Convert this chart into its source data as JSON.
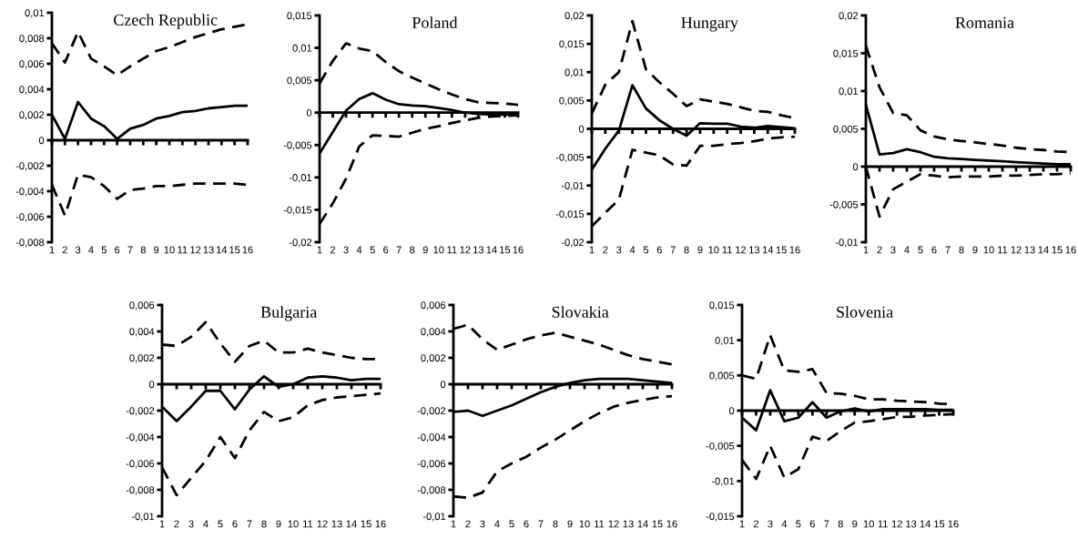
{
  "chart_data": [
    {
      "type": "line",
      "title": "Czech Republic",
      "categories": [
        "1",
        "2",
        "3",
        "4",
        "5",
        "6",
        "7",
        "8",
        "9",
        "10",
        "11",
        "12",
        "13",
        "14",
        "15",
        "16"
      ],
      "series": [
        {
          "color": "#000000",
          "line_style": "dashed",
          "values": [
            0.0076,
            0.0061,
            0.0085,
            0.0064,
            0.0058,
            0.0051,
            0.0058,
            0.0064,
            0.007,
            0.0073,
            0.0077,
            0.0081,
            0.0084,
            0.0087,
            0.0089,
            0.0091
          ]
        },
        {
          "color": "#000000",
          "line_style": "solid",
          "values": [
            0.002,
            0.0001,
            0.003,
            0.0017,
            0.0011,
            0.0001,
            0.0009,
            0.0012,
            0.0017,
            0.0019,
            0.0022,
            0.0023,
            0.0025,
            0.0026,
            0.0027,
            0.0027
          ]
        },
        {
          "color": "#000000",
          "line_style": "dashed",
          "values": [
            -0.0035,
            -0.0059,
            -0.0027,
            -0.0029,
            -0.0036,
            -0.0046,
            -0.0039,
            -0.0038,
            -0.0036,
            -0.0036,
            -0.0035,
            -0.0034,
            -0.0034,
            -0.0034,
            -0.0034,
            -0.0035
          ]
        }
      ],
      "ylim": [
        -0.008,
        0.01
      ],
      "yticks": [
        {
          "value": -0.008,
          "label": "-0,008"
        },
        {
          "value": -0.006,
          "label": "-0,006"
        },
        {
          "value": -0.004,
          "label": "-0,004"
        },
        {
          "value": -0.002,
          "label": "-0,002"
        },
        {
          "value": 0,
          "label": "0"
        },
        {
          "value": 0.002,
          "label": "0,002"
        },
        {
          "value": 0.004,
          "label": "0,004"
        },
        {
          "value": 0.006,
          "label": "0,006"
        },
        {
          "value": 0.008,
          "label": "0,008"
        },
        {
          "value": 0.01,
          "label": "0,01"
        }
      ]
    },
    {
      "type": "line",
      "title": "Poland",
      "categories": [
        "1",
        "2",
        "3",
        "4",
        "5",
        "6",
        "7",
        "8",
        "9",
        "10",
        "11",
        "12",
        "13",
        "14",
        "15",
        "16"
      ],
      "series": [
        {
          "color": "#000000",
          "line_style": "dashed",
          "values": [
            0.0045,
            0.008,
            0.0107,
            0.0099,
            0.0095,
            0.0078,
            0.0064,
            0.0054,
            0.0045,
            0.0036,
            0.0028,
            0.0021,
            0.0016,
            0.0015,
            0.0014,
            0.0012
          ]
        },
        {
          "color": "#000000",
          "line_style": "solid",
          "values": [
            -0.0063,
            -0.003,
            0.0003,
            0.0021,
            0.003,
            0.002,
            0.0013,
            0.0011,
            0.001,
            0.0007,
            0.0004,
            0.0,
            -0.0002,
            -0.0003,
            -0.0003,
            -0.0003
          ]
        },
        {
          "color": "#000000",
          "line_style": "dashed",
          "values": [
            -0.0172,
            -0.014,
            -0.0102,
            -0.0052,
            -0.0035,
            -0.0036,
            -0.0037,
            -0.0031,
            -0.0025,
            -0.0021,
            -0.0016,
            -0.0012,
            -0.0008,
            -0.0006,
            -0.0005,
            -0.0004
          ]
        }
      ],
      "ylim": [
        -0.02,
        0.015
      ],
      "yticks": [
        {
          "value": -0.02,
          "label": "-0,02"
        },
        {
          "value": -0.015,
          "label": "-0,015"
        },
        {
          "value": -0.01,
          "label": "-0,01"
        },
        {
          "value": -0.005,
          "label": "-0,005"
        },
        {
          "value": 0,
          "label": "0"
        },
        {
          "value": 0.005,
          "label": "0,005"
        },
        {
          "value": 0.01,
          "label": "0,01"
        },
        {
          "value": 0.015,
          "label": "0,015"
        }
      ]
    },
    {
      "type": "line",
      "title": "Hungary",
      "categories": [
        "1",
        "2",
        "3",
        "4",
        "5",
        "6",
        "7",
        "8",
        "9",
        "10",
        "11",
        "12",
        "13",
        "14",
        "15",
        "16"
      ],
      "series": [
        {
          "color": "#000000",
          "line_style": "dashed",
          "values": [
            0.0027,
            0.0078,
            0.01,
            0.019,
            0.0105,
            0.0082,
            0.0062,
            0.004,
            0.0052,
            0.0048,
            0.0044,
            0.0038,
            0.0032,
            0.003,
            0.0024,
            0.0019
          ]
        },
        {
          "color": "#000000",
          "line_style": "solid",
          "values": [
            -0.0072,
            -0.0035,
            -0.0003,
            0.0077,
            0.0036,
            0.0015,
            0.0,
            -0.0012,
            0.001,
            0.0009,
            0.0009,
            0.0004,
            0.0002,
            0.0005,
            0.0003,
            0.0001
          ]
        },
        {
          "color": "#000000",
          "line_style": "dashed",
          "values": [
            -0.0172,
            -0.0148,
            -0.0125,
            -0.0037,
            -0.0042,
            -0.0047,
            -0.0063,
            -0.0065,
            -0.003,
            -0.003,
            -0.0027,
            -0.0025,
            -0.0022,
            -0.0017,
            -0.0015,
            -0.0014
          ]
        }
      ],
      "ylim": [
        -0.02,
        0.02
      ],
      "yticks": [
        {
          "value": -0.02,
          "label": "-0,02"
        },
        {
          "value": -0.015,
          "label": "-0,015"
        },
        {
          "value": -0.01,
          "label": "-0,01"
        },
        {
          "value": -0.005,
          "label": "-0,005"
        },
        {
          "value": 0,
          "label": "0"
        },
        {
          "value": 0.005,
          "label": "0,005"
        },
        {
          "value": 0.01,
          "label": "0,01"
        },
        {
          "value": 0.015,
          "label": "0,015"
        },
        {
          "value": 0.02,
          "label": "0,02"
        }
      ]
    },
    {
      "type": "line",
      "title": "Romania",
      "categories": [
        "1",
        "2",
        "3",
        "4",
        "5",
        "6",
        "7",
        "8",
        "9",
        "10",
        "11",
        "12",
        "13",
        "14",
        "15",
        "16"
      ],
      "series": [
        {
          "color": "#000000",
          "line_style": "dashed",
          "values": [
            0.016,
            0.0105,
            0.0071,
            0.0068,
            0.0048,
            0.004,
            0.0036,
            0.0034,
            0.0032,
            0.003,
            0.0028,
            0.0025,
            0.0023,
            0.0022,
            0.002,
            0.0019
          ]
        },
        {
          "color": "#000000",
          "line_style": "solid",
          "values": [
            0.0082,
            0.0016,
            0.0018,
            0.0023,
            0.0019,
            0.0013,
            0.0011,
            0.001,
            0.0009,
            0.0008,
            0.0007,
            0.0006,
            0.0005,
            0.0004,
            0.0003,
            0.0003
          ]
        },
        {
          "color": "#000000",
          "line_style": "dashed",
          "values": [
            0.0,
            -0.0066,
            -0.003,
            -0.002,
            -0.001,
            -0.0012,
            -0.0014,
            -0.0013,
            -0.0013,
            -0.0013,
            -0.0012,
            -0.0012,
            -0.0011,
            -0.001,
            -0.001,
            -0.0009
          ]
        }
      ],
      "ylim": [
        -0.01,
        0.02
      ],
      "yticks": [
        {
          "value": -0.01,
          "label": "-0,01"
        },
        {
          "value": -0.005,
          "label": "-0,005"
        },
        {
          "value": 0,
          "label": "0"
        },
        {
          "value": 0.005,
          "label": "0,005"
        },
        {
          "value": 0.01,
          "label": "0,01"
        },
        {
          "value": 0.015,
          "label": "0,015"
        },
        {
          "value": 0.02,
          "label": "0,02"
        }
      ]
    },
    {
      "type": "line",
      "title": "Bulgaria",
      "categories": [
        "1",
        "2",
        "3",
        "4",
        "5",
        "6",
        "7",
        "8",
        "9",
        "10",
        "11",
        "12",
        "13",
        "14",
        "15",
        "16"
      ],
      "series": [
        {
          "color": "#000000",
          "line_style": "dashed",
          "values": [
            0.003,
            0.0029,
            0.0036,
            0.0047,
            0.0031,
            0.0017,
            0.0029,
            0.0033,
            0.0024,
            0.0024,
            0.0027,
            0.0024,
            0.0022,
            0.002,
            0.0019,
            0.0019
          ]
        },
        {
          "color": "#000000",
          "line_style": "solid",
          "values": [
            -0.0017,
            -0.0028,
            -0.0017,
            -0.0005,
            -0.0005,
            -0.0019,
            -0.0004,
            0.0006,
            -0.0002,
            0.0,
            0.0005,
            0.0006,
            0.0005,
            0.0003,
            0.0004,
            0.0004
          ]
        },
        {
          "color": "#000000",
          "line_style": "dashed",
          "values": [
            -0.0063,
            -0.0084,
            -0.0071,
            -0.0058,
            -0.004,
            -0.0056,
            -0.0035,
            -0.0021,
            -0.0028,
            -0.0025,
            -0.0016,
            -0.0012,
            -0.001,
            -0.0009,
            -0.0008,
            -0.0007
          ]
        }
      ],
      "ylim": [
        -0.01,
        0.006
      ],
      "yticks": [
        {
          "value": -0.01,
          "label": "-0,01"
        },
        {
          "value": -0.008,
          "label": "-0,008"
        },
        {
          "value": -0.006,
          "label": "-0,006"
        },
        {
          "value": -0.004,
          "label": "-0,004"
        },
        {
          "value": -0.002,
          "label": "-0,002"
        },
        {
          "value": 0,
          "label": "0"
        },
        {
          "value": 0.002,
          "label": "0,002"
        },
        {
          "value": 0.004,
          "label": "0,004"
        },
        {
          "value": 0.006,
          "label": "0,006"
        }
      ]
    },
    {
      "type": "line",
      "title": "Slovakia",
      "categories": [
        "1",
        "2",
        "3",
        "4",
        "5",
        "6",
        "7",
        "8",
        "9",
        "10",
        "11",
        "12",
        "13",
        "14",
        "15",
        "16"
      ],
      "series": [
        {
          "color": "#000000",
          "line_style": "dashed",
          "values": [
            0.0042,
            0.0045,
            0.0034,
            0.0026,
            0.003,
            0.0034,
            0.0037,
            0.0039,
            0.0036,
            0.0033,
            0.003,
            0.0026,
            0.0022,
            0.0019,
            0.0017,
            0.0015
          ]
        },
        {
          "color": "#000000",
          "line_style": "solid",
          "values": [
            -0.0021,
            -0.002,
            -0.0024,
            -0.002,
            -0.0016,
            -0.0011,
            -0.0006,
            -0.0002,
            0.0001,
            0.0003,
            0.0004,
            0.0004,
            0.0004,
            0.0003,
            0.0002,
            0.0001
          ]
        },
        {
          "color": "#000000",
          "line_style": "dashed",
          "values": [
            -0.0085,
            -0.0086,
            -0.0082,
            -0.0066,
            -0.006,
            -0.0055,
            -0.0048,
            -0.0042,
            -0.0035,
            -0.0028,
            -0.0022,
            -0.0017,
            -0.0014,
            -0.0012,
            -0.001,
            -0.0009
          ]
        }
      ],
      "ylim": [
        -0.01,
        0.006
      ],
      "yticks": [
        {
          "value": -0.01,
          "label": "-0,01"
        },
        {
          "value": -0.008,
          "label": "-0,008"
        },
        {
          "value": -0.006,
          "label": "-0,006"
        },
        {
          "value": -0.004,
          "label": "-0,004"
        },
        {
          "value": -0.002,
          "label": "-0,002"
        },
        {
          "value": 0,
          "label": "0"
        },
        {
          "value": 0.002,
          "label": "0,002"
        },
        {
          "value": 0.004,
          "label": "0,004"
        },
        {
          "value": 0.006,
          "label": "0,006"
        }
      ]
    },
    {
      "type": "line",
      "title": "Slovenia",
      "categories": [
        "1",
        "2",
        "3",
        "4",
        "5",
        "6",
        "7",
        "8",
        "9",
        "10",
        "11",
        "12",
        "13",
        "14",
        "15",
        "16"
      ],
      "series": [
        {
          "color": "#000000",
          "line_style": "dashed",
          "values": [
            0.005,
            0.0045,
            0.0107,
            0.0057,
            0.0055,
            0.0059,
            0.0025,
            0.0024,
            0.0021,
            0.0016,
            0.0016,
            0.0014,
            0.0013,
            0.0012,
            0.001,
            0.0009
          ]
        },
        {
          "color": "#000000",
          "line_style": "solid",
          "values": [
            -0.001,
            -0.0028,
            0.0029,
            -0.0015,
            -0.001,
            0.0012,
            -0.001,
            -0.0001,
            0.0003,
            -0.0001,
            0.0002,
            0.0002,
            0.0002,
            0.0002,
            0.0001,
            0.0001
          ]
        },
        {
          "color": "#000000",
          "line_style": "dashed",
          "values": [
            -0.007,
            -0.0097,
            -0.005,
            -0.0095,
            -0.0083,
            -0.0037,
            -0.0043,
            -0.0029,
            -0.0017,
            -0.0015,
            -0.0012,
            -0.0009,
            -0.0009,
            -0.0007,
            -0.0006,
            -0.0005
          ]
        }
      ],
      "ylim": [
        -0.015,
        0.015
      ],
      "yticks": [
        {
          "value": -0.015,
          "label": "-0,015"
        },
        {
          "value": -0.01,
          "label": "-0,01"
        },
        {
          "value": -0.005,
          "label": "-0,005"
        },
        {
          "value": 0,
          "label": "0"
        },
        {
          "value": 0.005,
          "label": "0,005"
        },
        {
          "value": 0.01,
          "label": "0,01"
        },
        {
          "value": 0.015,
          "label": "0,015"
        }
      ]
    }
  ]
}
